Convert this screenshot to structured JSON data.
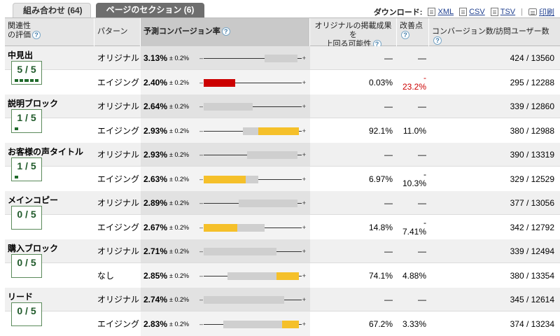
{
  "tabs": [
    {
      "label": "組み合わせ (64)",
      "active": false
    },
    {
      "label": "ページのセクション (6)",
      "active": true
    }
  ],
  "downloads": {
    "label": "ダウンロード:",
    "xml": "XML",
    "csv": "CSV",
    "tsv": "TSV",
    "print": "印刷"
  },
  "columns": {
    "relevance": "関連性\nの評価",
    "pattern": "パターン",
    "rate": "予測コンバージョン率",
    "probability": "オリジナルの掲載成果を\n上回る可能性",
    "improvement": "改善点",
    "conversions": "コンバージョン数/訪問ユーザー数"
  },
  "colors": {
    "negative": "#cc0000",
    "positive": "#f5c02a",
    "neutral": "#cfcfcf"
  },
  "sections": [
    {
      "name": "中見出",
      "score": "5 / 5",
      "score_value": 5,
      "rows": [
        {
          "pattern": "オリジナル",
          "rate": "3.13%",
          "pm": "± 0.2%",
          "prob": "—",
          "imp": "—",
          "conv": "424 / 13560",
          "ci": [
            0.62,
            0.96
          ],
          "hl": null
        },
        {
          "pattern": "エイジング",
          "rate": "2.40%",
          "pm": "± 0.2%",
          "prob": "0.03%",
          "imp_top": "-",
          "imp": "23.2%",
          "imp_neg": true,
          "conv": "295 / 12288",
          "ci": [
            0.0,
            0.32
          ],
          "hl": [
            0.0,
            0.32
          ],
          "hl_color": "#cc0000"
        }
      ]
    },
    {
      "name": "説明ブロック",
      "score": "1 / 5",
      "score_value": 1,
      "rows": [
        {
          "pattern": "オリジナル",
          "rate": "2.64%",
          "pm": "± 0.2%",
          "prob": "—",
          "imp": "—",
          "conv": "339 / 12860",
          "ci": [
            0.0,
            0.5
          ],
          "hl": null
        },
        {
          "pattern": "エイジング",
          "rate": "2.93%",
          "pm": "± 0.2%",
          "prob": "92.1%",
          "imp": "11.0%",
          "conv": "380 / 12988",
          "ci": [
            0.4,
            0.97
          ],
          "hl": [
            0.56,
            0.97
          ],
          "hl_color": "#f5c02a"
        }
      ]
    },
    {
      "name": "お客様の声タイトル",
      "score": "1 / 5",
      "score_value": 1,
      "rows": [
        {
          "pattern": "オリジナル",
          "rate": "2.93%",
          "pm": "± 0.2%",
          "prob": "—",
          "imp": "—",
          "conv": "390 / 13319",
          "ci": [
            0.44,
            0.96
          ],
          "hl": null
        },
        {
          "pattern": "エイジング",
          "rate": "2.63%",
          "pm": "± 0.2%",
          "prob": "6.97%",
          "imp_top": "-",
          "imp": "10.3%",
          "conv": "329 / 12529",
          "ci": [
            0.0,
            0.56
          ],
          "hl": [
            0.0,
            0.43
          ],
          "hl_color": "#f5c02a"
        }
      ]
    },
    {
      "name": "メインコピー",
      "score": "0 / 5",
      "score_value": 0,
      "rows": [
        {
          "pattern": "オリジナル",
          "rate": "2.89%",
          "pm": "± 0.2%",
          "prob": "—",
          "imp": "—",
          "conv": "377 / 13056",
          "ci": [
            0.36,
            0.96
          ],
          "hl": null
        },
        {
          "pattern": "エイジング",
          "rate": "2.67%",
          "pm": "± 0.2%",
          "prob": "14.8%",
          "imp_top": "-",
          "imp": "7.41%",
          "conv": "342 / 12792",
          "ci": [
            0.0,
            0.62
          ],
          "hl": [
            0.0,
            0.34
          ],
          "hl_color": "#f5c02a"
        }
      ]
    },
    {
      "name": "購入ブロック",
      "score": "0 / 5",
      "score_value": 0,
      "rows": [
        {
          "pattern": "オリジナル",
          "rate": "2.71%",
          "pm": "± 0.2%",
          "prob": "—",
          "imp": "—",
          "conv": "339 / 12494",
          "ci": [
            0.0,
            0.74
          ],
          "hl": null
        },
        {
          "pattern": "なし",
          "rate": "2.85%",
          "pm": "± 0.2%",
          "prob": "74.1%",
          "imp": "4.88%",
          "conv": "380 / 13354",
          "ci": [
            0.24,
            0.97
          ],
          "hl": [
            0.74,
            0.97
          ],
          "hl_color": "#f5c02a"
        }
      ]
    },
    {
      "name": "リード",
      "score": "0 / 5",
      "score_value": 0,
      "rows": [
        {
          "pattern": "オリジナル",
          "rate": "2.74%",
          "pm": "± 0.2%",
          "prob": "—",
          "imp": "—",
          "conv": "345 / 12614",
          "ci": [
            0.0,
            0.82
          ],
          "hl": null
        },
        {
          "pattern": "エイジング",
          "rate": "2.83%",
          "pm": "± 0.2%",
          "prob": "67.2%",
          "imp": "3.33%",
          "conv": "374 / 13234",
          "ci": [
            0.2,
            0.97
          ],
          "hl": [
            0.8,
            0.97
          ],
          "hl_color": "#f5c02a"
        }
      ]
    }
  ]
}
